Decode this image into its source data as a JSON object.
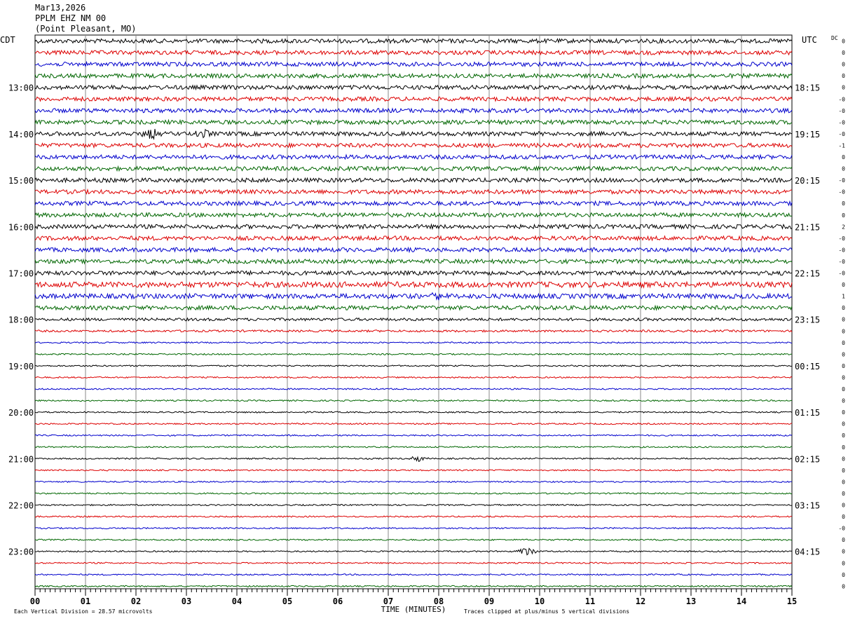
{
  "header": {
    "date": "Mar13,2026",
    "station": "PPLM EHZ NM 00",
    "location": "(Point Pleasant, MO)"
  },
  "chart_data": {
    "type": "line",
    "title": "PPLM EHZ NM 00",
    "left_axis_label": "CDT",
    "right_axis_label": "UTC",
    "dc_label": "DC",
    "xlabel": "TIME (MINUTES)",
    "x_ticks": [
      "00",
      "01",
      "02",
      "03",
      "04",
      "05",
      "06",
      "07",
      "08",
      "09",
      "10",
      "11",
      "12",
      "13",
      "14",
      "15"
    ],
    "xlim": [
      0,
      15
    ],
    "trace_colors": [
      "#000000",
      "#dd0000",
      "#0000cc",
      "#006600"
    ],
    "left_hour_labels": [
      "13:00",
      "14:00",
      "15:00",
      "16:00",
      "17:00",
      "18:00",
      "19:00",
      "20:00",
      "21:00",
      "22:00",
      "23:00"
    ],
    "right_hour_labels": [
      "18:15",
      "19:15",
      "20:15",
      "21:15",
      "22:15",
      "23:15",
      "00:15",
      "01:15",
      "02:15",
      "03:15",
      "04:15"
    ],
    "first_labeled_trace": 4,
    "traces_per_hour": 4,
    "trace_count": 48,
    "dc_offsets": [
      "0",
      "0",
      "0",
      "0",
      "0",
      "-0",
      "-0",
      "-0",
      "-0",
      "-1",
      "0",
      "0",
      "-0",
      "-0",
      "0",
      "0",
      "2",
      "-0",
      "-0",
      "-0",
      "-0",
      "0",
      "1",
      "0",
      "0",
      "0",
      "0",
      "0",
      "0",
      "0",
      "0",
      "0",
      "0",
      "0",
      "0",
      "0",
      "0",
      "0",
      "0",
      "0",
      "0",
      "0",
      "-0",
      "0",
      "0",
      "0",
      "0",
      "0"
    ],
    "trace_amplitude": [
      3,
      3,
      3,
      3,
      3,
      3,
      3,
      3,
      3,
      3,
      3,
      3,
      3,
      3,
      3,
      3,
      3,
      3,
      3,
      3,
      3,
      4,
      3.5,
      3,
      2,
      1.5,
      1,
      1,
      1,
      1,
      1,
      1,
      1,
      1,
      1,
      1,
      1,
      1,
      1,
      1,
      1,
      1,
      1,
      1,
      1,
      1,
      1,
      1
    ],
    "events": [
      {
        "trace": 36,
        "minute": 7.6,
        "amp": 5
      },
      {
        "trace": 44,
        "minute": 9.75,
        "amp": 7
      },
      {
        "trace": 22,
        "minute": 8.0,
        "amp": 6
      },
      {
        "trace": 8,
        "minute": 2.3,
        "amp": 7
      },
      {
        "trace": 8,
        "minute": 3.3,
        "amp": 6
      }
    ],
    "footer_left": "Each Vertical Division =   28.57 microvolts",
    "footer_right": "Traces clipped at plus/minus 5 vertical divisions"
  }
}
